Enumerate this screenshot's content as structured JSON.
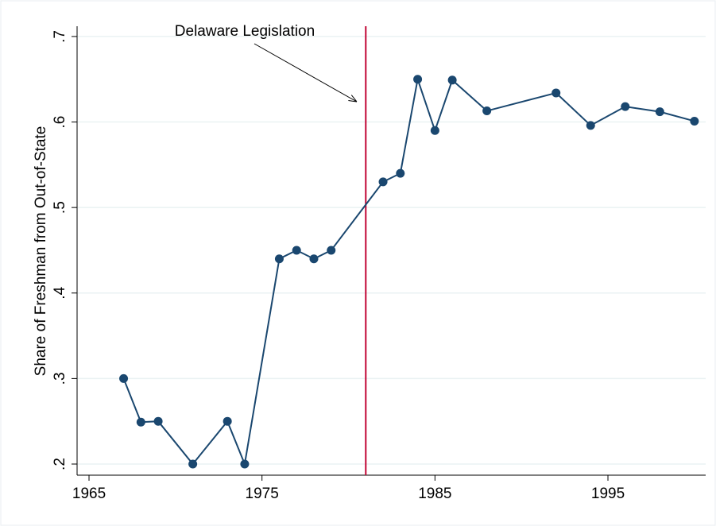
{
  "chart_data": {
    "type": "line",
    "y_label": "Share of Freshman from Out-of-State",
    "annotation": "Delaware Legislation",
    "x": [
      1967,
      1968,
      1969,
      1971,
      1973,
      1974,
      1976,
      1977,
      1978,
      1979,
      1982,
      1983,
      1984,
      1985,
      1986,
      1988,
      1992,
      1994,
      1996,
      1998,
      2000
    ],
    "series": [
      {
        "color": "#1a476f",
        "values": [
          0.3,
          0.249,
          0.25,
          0.2,
          0.25,
          0.2,
          0.44,
          0.45,
          0.44,
          0.45,
          0.53,
          0.54,
          0.65,
          0.59,
          0.649,
          0.613,
          0.634,
          0.596,
          0.618,
          0.612,
          0.601
        ]
      }
    ],
    "vline": {
      "x": 1981,
      "color": "#c10534"
    },
    "xlim": [
      1964.31,
      2000.65
    ],
    "xticks": [
      1965,
      1975,
      1985,
      1995
    ],
    "ylim": [
      0.187,
      0.712
    ],
    "yticks": [
      {
        "value": 0.2,
        "label": ".2"
      },
      {
        "value": 0.3,
        "label": ".3"
      },
      {
        "value": 0.4,
        "label": ".4"
      },
      {
        "value": 0.5,
        "label": ".5"
      },
      {
        "value": 0.6,
        "label": ".6"
      },
      {
        "value": 0.7,
        "label": ".7"
      }
    ],
    "grid": true
  }
}
